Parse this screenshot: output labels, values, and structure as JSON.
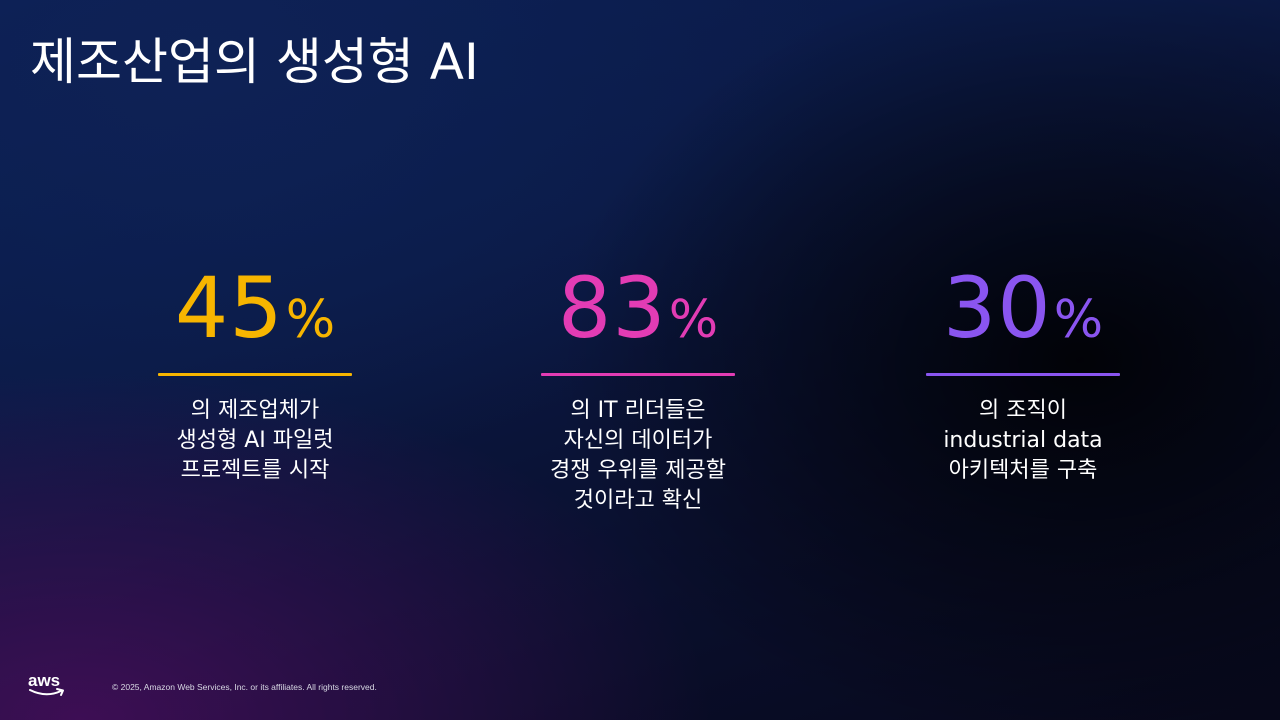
{
  "slide": {
    "title": "제조산업의 생성형 AI"
  },
  "stats": [
    {
      "number": "45",
      "percent_sign": "%",
      "value_percent": 45,
      "color": "#f7b500",
      "lines": [
        "의 제조업체가",
        "생성형 AI 파일럿",
        "프로젝트를 시작"
      ]
    },
    {
      "number": "83",
      "percent_sign": "%",
      "value_percent": 83,
      "color": "#e23cb4",
      "lines": [
        "의 IT 리더들은",
        "자신의 데이터가",
        "경쟁 우위를 제공할",
        "것이라고 확신"
      ]
    },
    {
      "number": "30",
      "percent_sign": "%",
      "value_percent": 30,
      "color": "#8a55f0",
      "lines": [
        "의 조직이",
        "industrial data",
        "아키텍처를 구축"
      ]
    }
  ],
  "footer": {
    "logo_text": "aws",
    "copyright": "© 2025, Amazon Web Services, Inc. or its affiliates. All rights reserved."
  }
}
